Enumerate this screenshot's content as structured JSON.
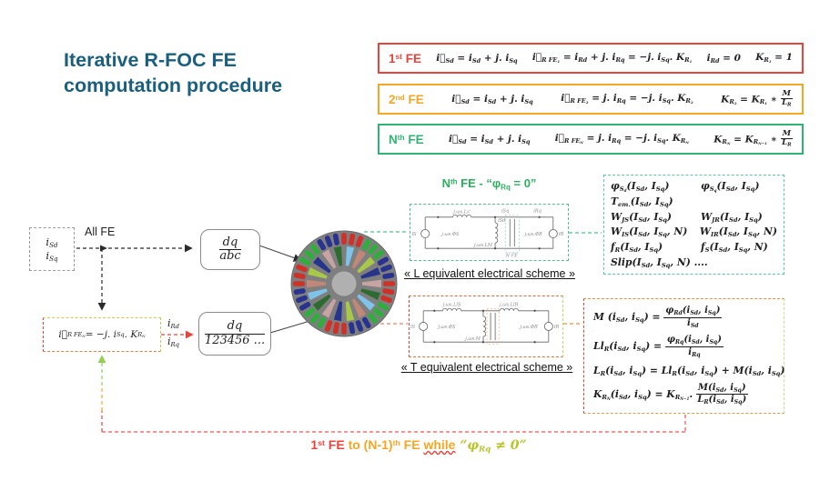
{
  "slide": {
    "title_line1": "Iterative R-FOC FE",
    "title_line2": "computation procedure"
  },
  "colors": {
    "title": "#1a5f7e",
    "red": "#e8443c",
    "orange": "#f5a623",
    "green": "#2eb573",
    "teal_dash": "#53c08f",
    "yellow_green": "#b8c42c",
    "loop_green": "#92d050",
    "gray_border": "#8a8a8a"
  },
  "fe_boxes": [
    {
      "label": "1^{st} FE",
      "eq1": "i⃗_{Sd} = i_{Sd} + j. i_{Sq}",
      "eq2": "i⃗_{R FE_{1}} = i_{Rd} + j. i_{Rq} = −j. i_{Sq}. K_{R_{1}}",
      "eq3": "i_{Rd} = 0",
      "eq4": "K_{R_{1}} = 1"
    },
    {
      "label": "2^{nd} FE",
      "eq1": "i⃗_{Sd} = i_{Sd} + j. i_{Sq}",
      "eq2": "i⃗_{R FE_{2}} = j. i_{Rq} = −j. i_{Sq}. K_{R_{2}}",
      "eq3": "K_{R_{2}} = K_{R_{1}} ∗ [f:M|L_{R}]"
    },
    {
      "label": "N^{th} FE",
      "eq1": "i⃗_{Sd} = i_{Sd} + j. i_{Sq}",
      "eq2": "i⃗_{R FE_{N}} = j. i_{Rq} = −j. i_{Sq}. K_{R_{N}}",
      "eq3": "K_{R_{N}} = K_{R_{N−1}} ∗ [f:M|L_{R}]"
    }
  ],
  "flow": {
    "input_line1": "i_{Sd}",
    "input_line2": "i_{Sq}",
    "all_fe_label": "All FE",
    "dq_abc": "[f:dq|abc]",
    "dq_num": "[f:dq|123456 ...]",
    "feedback_eq": "i⃗_{R FE_{N}} = −j. i_{Sq}. K_{R_{N}}",
    "ird": "i_{Rd}",
    "irq": "i_{Rq}"
  },
  "schemes": {
    "l_title": "N^{th} FE - “φ_{Rq} = 0”",
    "l_caption": "« L equivalent electrical scheme »",
    "t_caption": "« T equivalent electrical scheme »",
    "l": {
      "src_left": "īS",
      "coil_top": "j.ωs.Ls'",
      "flux_left": "j.ωs.ΦS",
      "i_sd": "iSd",
      "i_sq": "iSq",
      "i_rq": "iRq",
      "coil_mid": "j.ωs.LM",
      "flux_right": "j.ωs.ΦR",
      "src_right": "īR",
      "n_fe": "N FE"
    },
    "t": {
      "src_left": "īS",
      "coil_left": "j.ωs.LlS",
      "coil_right": "j.ωs.LlR",
      "coil_mid": "j.ωs.M",
      "flux_left": "j.ωs.ΦS",
      "flux_right": "j.ωs.ΦR",
      "src_right": "īR"
    }
  },
  "outputs": {
    "rows": [
      [
        "φ_{S_{d}}(I_{Sd}, I_{Sq})",
        "φ_{S_{q}}(I_{Sd}, I_{Sq})"
      ],
      [
        "T_{em.}(I_{Sd}, I_{Sq})",
        ""
      ],
      [
        "W_{JS}(I_{Sd}, I_{Sq})",
        "W_{JR}(I_{Sd}, I_{Sq})"
      ],
      [
        "W_{IS}(I_{Sd}, I_{Sq}, N)",
        "W_{IR}(I_{Sd}, I_{Sq}, N)"
      ],
      [
        "f_{R}(I_{Sd}, I_{Sq})",
        "f_{S}(I_{Sd}, I_{Sq}, N)"
      ],
      [
        "Slip(I_{Sd}, I_{Sq}, N) ....",
        ""
      ]
    ]
  },
  "ident": {
    "equations": [
      "M (i_{Sd}, i_{Sq}) = [f:φ_{Rd}(i_{Sd}, i_{Sq})|i_{Sd}]",
      "Ll_{R}(i_{Sd}, i_{Sq}) = [f:φ_{Rq}(i_{Sd}, i_{Sq})|i_{Rq}]",
      "L_{R}(i_{Sd}, i_{Sq}) = Ll_{R}(i_{Sd}, i_{Sq}) + M(i_{Sd}, i_{Sq})",
      "K_{R_{N}}(i_{Sd}, i_{Sq}) = K_{R_{N−1}}. [f:M(i_{Sd}, i_{Sq})|L_{R}(i_{Sd}, i_{Sq})]"
    ]
  },
  "loop_label": {
    "p1": "1^{st} FE ",
    "p2": "to (N-1)^{th} FE ",
    "p3": "while",
    "p4": " “φ_{Rq} ≠ 0”"
  },
  "motor": {
    "body_color": "#7f7f7f",
    "shaft_color": "#b0b0b0",
    "outer_slots": 36,
    "outer_slot_colors": [
      "#d03028",
      "#2fae3c",
      "#27338f"
    ],
    "inner_wedges": 18,
    "inner_wedge_colors": [
      "#7fc3e8",
      "#c08878",
      "#a8c84a",
      "#27348b",
      "#c7a3a3",
      "#2e6b30"
    ]
  }
}
